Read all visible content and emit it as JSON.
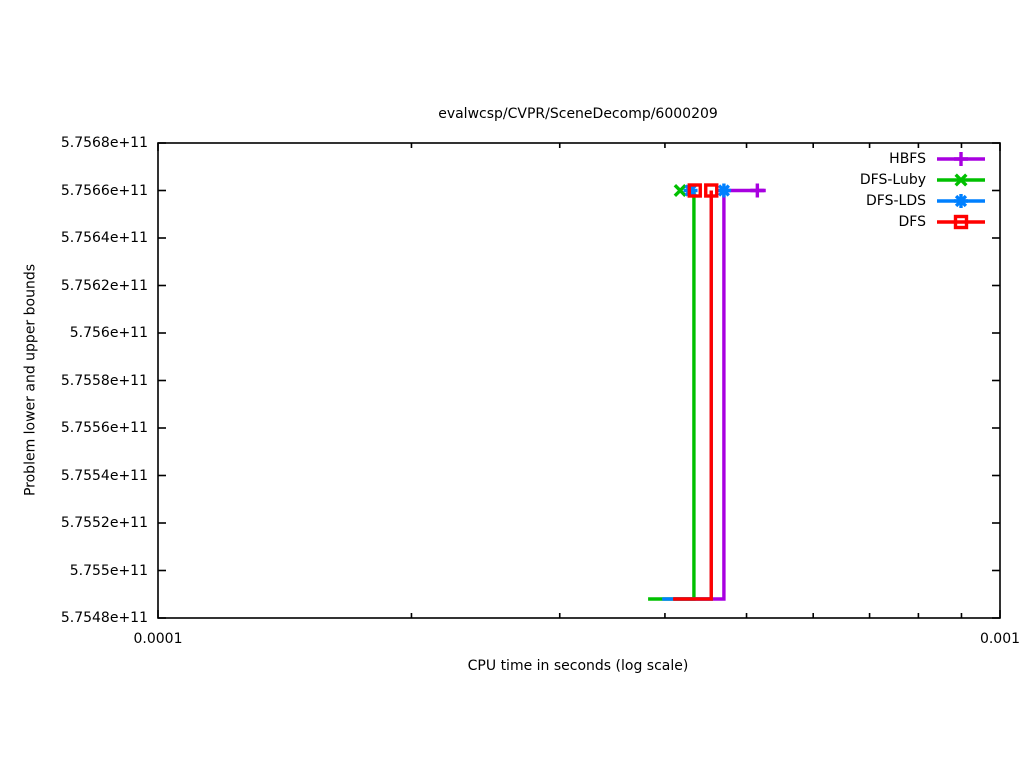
{
  "chart_data": {
    "type": "line",
    "title": "evalwcsp/CVPR/SceneDecomp/6000209",
    "xlabel": "CPU time in seconds (log scale)",
    "ylabel": "Problem lower and upper bounds",
    "x_scale": "log",
    "grid": false,
    "legend_position": "top-right",
    "xlim": [
      0.0001,
      0.001
    ],
    "ylim": [
      575480000000.0,
      575680000000.0
    ],
    "x_major_ticks": [
      {
        "value": 0.0001,
        "label": "0.0001"
      },
      {
        "value": 0.001,
        "label": "0.001"
      }
    ],
    "x_minor_ticks": [
      0.0002,
      0.0003,
      0.0004,
      0.0005,
      0.0006,
      0.0007,
      0.0008,
      0.0009
    ],
    "y_ticks": [
      {
        "value": 575680000000.0,
        "label": "5.7568e+11"
      },
      {
        "value": 575660000000.0,
        "label": "5.7566e+11"
      },
      {
        "value": 575640000000.0,
        "label": "5.7564e+11"
      },
      {
        "value": 575620000000.0,
        "label": "5.7562e+11"
      },
      {
        "value": 575600000000.0,
        "label": "5.756e+11"
      },
      {
        "value": 575580000000.0,
        "label": "5.7558e+11"
      },
      {
        "value": 575560000000.0,
        "label": "5.7556e+11"
      },
      {
        "value": 575540000000.0,
        "label": "5.7554e+11"
      },
      {
        "value": 575520000000.0,
        "label": "5.7552e+11"
      },
      {
        "value": 575500000000.0,
        "label": "5.755e+11"
      },
      {
        "value": 575480000000.0,
        "label": "5.7548e+11"
      }
    ],
    "bounds": {
      "initial_lower_bound": 575488000000.0,
      "optimum_upper_bound": 575660000000.0
    },
    "series": [
      {
        "name": "HBFS",
        "color": "#a800e0",
        "marker": "plus",
        "line": [
          [
            0.00041,
            575488000000.0
          ],
          [
            0.00047,
            575488000000.0
          ],
          [
            0.00047,
            575660000000.0
          ],
          [
            0.000527,
            575660000000.0
          ]
        ],
        "marker_points": [
          [
            0.000515,
            575660000000.0
          ]
        ]
      },
      {
        "name": "DFS-Luby",
        "color": "#00c000",
        "marker": "cross",
        "line": [
          [
            0.000382,
            575488000000.0
          ],
          [
            0.000433,
            575488000000.0
          ],
          [
            0.000433,
            575660000000.0
          ]
        ],
        "marker_points": [
          [
            0.000417,
            575660000000.0
          ]
        ]
      },
      {
        "name": "DFS-LDS",
        "color": "#0080ff",
        "marker": "star",
        "line": [
          [
            0.000397,
            575488000000.0
          ],
          [
            0.000454,
            575488000000.0
          ],
          [
            0.000454,
            575660000000.0
          ]
        ],
        "marker_points": [
          [
            0.000429,
            575660000000.0
          ],
          [
            0.00047,
            575660000000.0
          ]
        ]
      },
      {
        "name": "DFS",
        "color": "#ff0000",
        "marker": "square",
        "line": [
          [
            0.000409,
            575488000000.0
          ],
          [
            0.000454,
            575488000000.0
          ],
          [
            0.000454,
            575660000000.0
          ]
        ],
        "marker_points": [
          [
            0.000434,
            575660000000.0
          ],
          [
            0.000454,
            575660000000.0
          ]
        ]
      }
    ]
  }
}
